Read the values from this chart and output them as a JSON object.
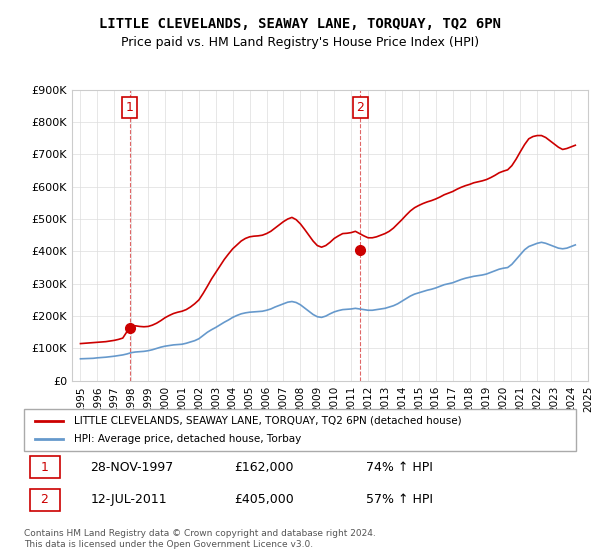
{
  "title": "LITTLE CLEVELANDS, SEAWAY LANE, TORQUAY, TQ2 6PN",
  "subtitle": "Price paid vs. HM Land Registry's House Price Index (HPI)",
  "legend_label1": "LITTLE CLEVELANDS, SEAWAY LANE, TORQUAY, TQ2 6PN (detached house)",
  "legend_label2": "HPI: Average price, detached house, Torbay",
  "annotation1_label": "1",
  "annotation1_date": "28-NOV-1997",
  "annotation1_price": "£162,000",
  "annotation1_hpi": "74% ↑ HPI",
  "annotation2_label": "2",
  "annotation2_date": "12-JUL-2011",
  "annotation2_price": "£405,000",
  "annotation2_hpi": "57% ↑ HPI",
  "footer": "Contains HM Land Registry data © Crown copyright and database right 2024.\nThis data is licensed under the Open Government Licence v3.0.",
  "ylim": [
    0,
    900000
  ],
  "yticks": [
    0,
    100000,
    200000,
    300000,
    400000,
    500000,
    600000,
    700000,
    800000,
    900000
  ],
  "ytick_labels": [
    "£0",
    "£100K",
    "£200K",
    "£300K",
    "£400K",
    "£500K",
    "£600K",
    "£700K",
    "£800K",
    "£900K"
  ],
  "line1_color": "#cc0000",
  "line2_color": "#6699cc",
  "marker_color": "#cc0000",
  "dashed_color": "#cc0000",
  "bg_color": "#ffffff",
  "grid_color": "#dddddd",
  "annotation_box_color": "#cc0000",
  "hpi_data": {
    "years": [
      1995,
      1995.25,
      1995.5,
      1995.75,
      1996,
      1996.25,
      1996.5,
      1996.75,
      1997,
      1997.25,
      1997.5,
      1997.75,
      1998,
      1998.25,
      1998.5,
      1998.75,
      1999,
      1999.25,
      1999.5,
      1999.75,
      2000,
      2000.25,
      2000.5,
      2000.75,
      2001,
      2001.25,
      2001.5,
      2001.75,
      2002,
      2002.25,
      2002.5,
      2002.75,
      2003,
      2003.25,
      2003.5,
      2003.75,
      2004,
      2004.25,
      2004.5,
      2004.75,
      2005,
      2005.25,
      2005.5,
      2005.75,
      2006,
      2006.25,
      2006.5,
      2006.75,
      2007,
      2007.25,
      2007.5,
      2007.75,
      2008,
      2008.25,
      2008.5,
      2008.75,
      2009,
      2009.25,
      2009.5,
      2009.75,
      2010,
      2010.25,
      2010.5,
      2010.75,
      2011,
      2011.25,
      2011.5,
      2011.75,
      2012,
      2012.25,
      2012.5,
      2012.75,
      2013,
      2013.25,
      2013.5,
      2013.75,
      2014,
      2014.25,
      2014.5,
      2014.75,
      2015,
      2015.25,
      2015.5,
      2015.75,
      2016,
      2016.25,
      2016.5,
      2016.75,
      2017,
      2017.25,
      2017.5,
      2017.75,
      2018,
      2018.25,
      2018.5,
      2018.75,
      2019,
      2019.25,
      2019.5,
      2019.75,
      2020,
      2020.25,
      2020.5,
      2020.75,
      2021,
      2021.25,
      2021.5,
      2021.75,
      2022,
      2022.25,
      2022.5,
      2022.75,
      2023,
      2023.25,
      2023.5,
      2023.75,
      2024,
      2024.25
    ],
    "values": [
      68000,
      68500,
      69000,
      69500,
      71000,
      72000,
      73000,
      74500,
      76000,
      78000,
      80000,
      83000,
      87000,
      89000,
      90000,
      91000,
      93000,
      96000,
      100000,
      104000,
      107000,
      109000,
      111000,
      112000,
      113000,
      116000,
      120000,
      124000,
      130000,
      140000,
      150000,
      158000,
      165000,
      173000,
      181000,
      188000,
      196000,
      202000,
      207000,
      210000,
      212000,
      213000,
      214000,
      215000,
      218000,
      222000,
      228000,
      233000,
      238000,
      243000,
      245000,
      242000,
      235000,
      225000,
      215000,
      205000,
      198000,
      196000,
      200000,
      207000,
      213000,
      217000,
      220000,
      221000,
      222000,
      224000,
      222000,
      220000,
      218000,
      218000,
      220000,
      222000,
      224000,
      228000,
      232000,
      238000,
      246000,
      254000,
      262000,
      268000,
      272000,
      276000,
      280000,
      283000,
      287000,
      292000,
      297000,
      300000,
      303000,
      308000,
      313000,
      317000,
      320000,
      323000,
      325000,
      327000,
      330000,
      335000,
      340000,
      345000,
      348000,
      350000,
      360000,
      375000,
      390000,
      405000,
      415000,
      420000,
      425000,
      428000,
      425000,
      420000,
      415000,
      410000,
      408000,
      410000,
      415000,
      420000
    ]
  },
  "price_data": {
    "years": [
      1995,
      1995.25,
      1995.5,
      1995.75,
      1996,
      1996.25,
      1996.5,
      1996.75,
      1997,
      1997.25,
      1997.5,
      1997.75,
      1998,
      1998.25,
      1998.5,
      1998.75,
      1999,
      1999.25,
      1999.5,
      1999.75,
      2000,
      2000.25,
      2000.5,
      2000.75,
      2001,
      2001.25,
      2001.5,
      2001.75,
      2002,
      2002.25,
      2002.5,
      2002.75,
      2003,
      2003.25,
      2003.5,
      2003.75,
      2004,
      2004.25,
      2004.5,
      2004.75,
      2005,
      2005.25,
      2005.5,
      2005.75,
      2006,
      2006.25,
      2006.5,
      2006.75,
      2007,
      2007.25,
      2007.5,
      2007.75,
      2008,
      2008.25,
      2008.5,
      2008.75,
      2009,
      2009.25,
      2009.5,
      2009.75,
      2010,
      2010.25,
      2010.5,
      2010.75,
      2011,
      2011.25,
      2011.5,
      2011.75,
      2012,
      2012.25,
      2012.5,
      2012.75,
      2013,
      2013.25,
      2013.5,
      2013.75,
      2014,
      2014.25,
      2014.5,
      2014.75,
      2015,
      2015.25,
      2015.5,
      2015.75,
      2016,
      2016.25,
      2016.5,
      2016.75,
      2017,
      2017.25,
      2017.5,
      2017.75,
      2018,
      2018.25,
      2018.5,
      2018.75,
      2019,
      2019.25,
      2019.5,
      2019.75,
      2020,
      2020.25,
      2020.5,
      2020.75,
      2021,
      2021.25,
      2021.5,
      2021.75,
      2022,
      2022.25,
      2022.5,
      2022.75,
      2023,
      2023.25,
      2023.5,
      2023.75,
      2024,
      2024.25
    ],
    "values": [
      115000,
      116000,
      117000,
      118000,
      119000,
      120000,
      121000,
      123000,
      125000,
      128000,
      132000,
      152000,
      165000,
      170000,
      168000,
      167000,
      168000,
      172000,
      178000,
      186000,
      195000,
      202000,
      208000,
      212000,
      215000,
      220000,
      228000,
      238000,
      250000,
      270000,
      292000,
      315000,
      335000,
      355000,
      375000,
      392000,
      408000,
      420000,
      432000,
      440000,
      445000,
      447000,
      448000,
      450000,
      455000,
      462000,
      472000,
      482000,
      492000,
      500000,
      505000,
      498000,
      485000,
      468000,
      450000,
      432000,
      418000,
      413000,
      418000,
      428000,
      440000,
      448000,
      455000,
      456000,
      458000,
      462000,
      455000,
      448000,
      442000,
      442000,
      445000,
      450000,
      455000,
      462000,
      472000,
      485000,
      498000,
      512000,
      525000,
      535000,
      542000,
      548000,
      553000,
      557000,
      562000,
      568000,
      575000,
      580000,
      585000,
      592000,
      598000,
      603000,
      607000,
      612000,
      615000,
      618000,
      622000,
      628000,
      635000,
      643000,
      648000,
      652000,
      665000,
      685000,
      708000,
      730000,
      748000,
      755000,
      758000,
      758000,
      752000,
      742000,
      732000,
      722000,
      715000,
      718000,
      723000,
      728000
    ]
  },
  "sale1_x": 1997.9,
  "sale1_y": 162000,
  "sale2_x": 2011.55,
  "sale2_y": 405000,
  "xmin": 1994.5,
  "xmax": 2025.0,
  "xticks": [
    1995,
    1996,
    1997,
    1998,
    1999,
    2000,
    2001,
    2002,
    2003,
    2004,
    2005,
    2006,
    2007,
    2008,
    2009,
    2010,
    2011,
    2012,
    2013,
    2014,
    2015,
    2016,
    2017,
    2018,
    2019,
    2020,
    2021,
    2022,
    2023,
    2024,
    2025
  ]
}
